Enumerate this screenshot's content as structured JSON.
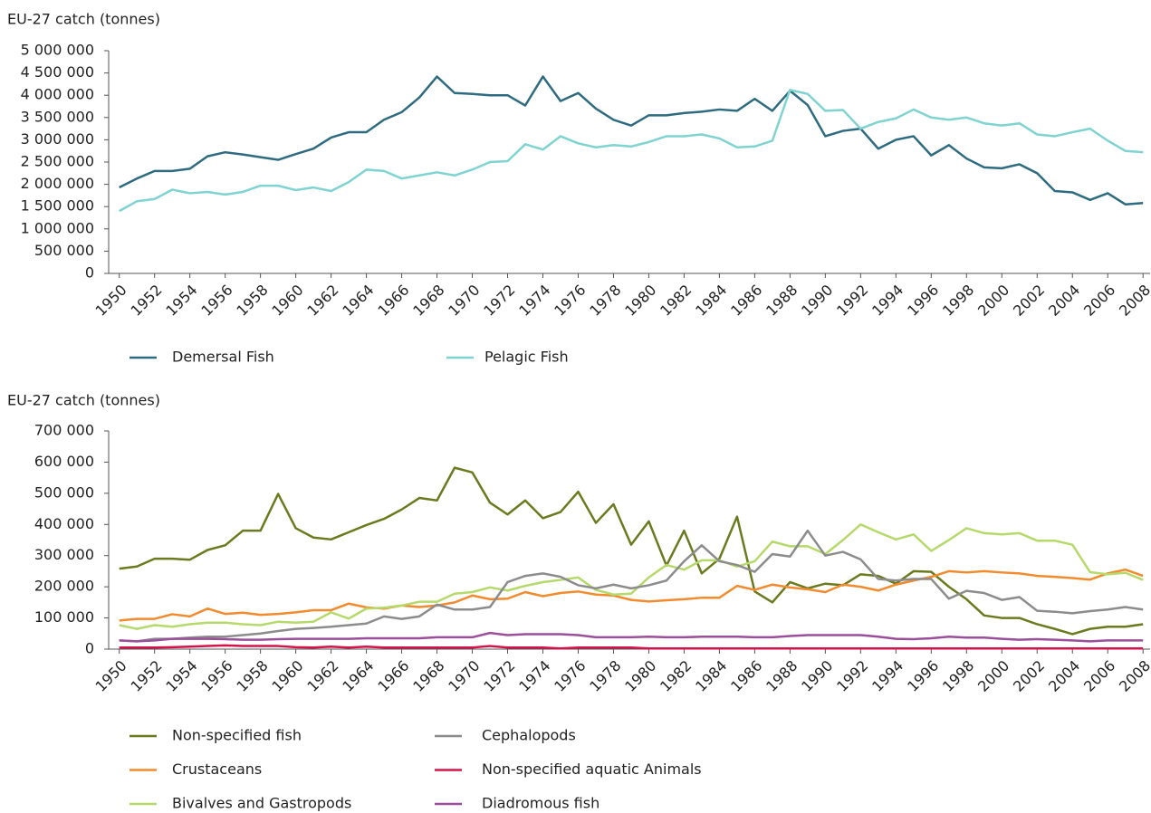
{
  "chart_data": [
    {
      "type": "line",
      "title": "EU-27 catch (tonnes)",
      "x": [
        1950,
        1951,
        1952,
        1953,
        1954,
        1955,
        1956,
        1957,
        1958,
        1959,
        1960,
        1961,
        1962,
        1963,
        1964,
        1965,
        1966,
        1967,
        1968,
        1969,
        1970,
        1971,
        1972,
        1973,
        1974,
        1975,
        1976,
        1977,
        1978,
        1979,
        1980,
        1981,
        1982,
        1983,
        1984,
        1985,
        1986,
        1987,
        1988,
        1989,
        1990,
        1991,
        1992,
        1993,
        1994,
        1995,
        1996,
        1997,
        1998,
        1999,
        2000,
        2001,
        2002,
        2003,
        2004,
        2005,
        2006,
        2007,
        2008
      ],
      "xlim": [
        1949.4,
        2008.4
      ],
      "xticks": [
        1950,
        1952,
        1954,
        1956,
        1958,
        1960,
        1962,
        1964,
        1966,
        1968,
        1970,
        1972,
        1974,
        1976,
        1978,
        1980,
        1982,
        1984,
        1986,
        1988,
        1990,
        1992,
        1994,
        1996,
        1998,
        2000,
        2002,
        2004,
        2006,
        2008
      ],
      "ylim": [
        0,
        5000000
      ],
      "yticks": [
        0,
        {
          "value": 500000,
          "label": "500 000"
        },
        {
          "value": 1000000,
          "label": "1 000 000"
        },
        {
          "value": 1500000,
          "label": "1 500 000"
        },
        {
          "value": 2000000,
          "label": "2 000 000"
        },
        {
          "value": 2500000,
          "label": "2 500 000"
        },
        {
          "value": 3000000,
          "label": "3 000 000"
        },
        {
          "value": 3500000,
          "label": "3 500 000"
        },
        {
          "value": 4000000,
          "label": "4 000 000"
        },
        {
          "value": 4500000,
          "label": "4 500 000"
        },
        {
          "value": 5000000,
          "label": "5 000 000"
        }
      ],
      "grid": false,
      "series": [
        {
          "name": "Demersal Fish",
          "color": "#2e6b80",
          "values": [
            1930000,
            2130000,
            2300000,
            2300000,
            2350000,
            2630000,
            2720000,
            2670000,
            2610000,
            2550000,
            2680000,
            2800000,
            3050000,
            3170000,
            3170000,
            3450000,
            3620000,
            3950000,
            4420000,
            4050000,
            4030000,
            4000000,
            4000000,
            3770000,
            4420000,
            3870000,
            4050000,
            3700000,
            3450000,
            3320000,
            3550000,
            3550000,
            3600000,
            3630000,
            3680000,
            3650000,
            3920000,
            3650000,
            4100000,
            3780000,
            3080000,
            3200000,
            3250000,
            2800000,
            3000000,
            3080000,
            2650000,
            2880000,
            2580000,
            2380000,
            2360000,
            2450000,
            2250000,
            1850000,
            1820000,
            1650000,
            1800000,
            1550000,
            1580000
          ]
        },
        {
          "name": "Pelagic Fish",
          "color": "#7fd3d0",
          "values": [
            1400000,
            1620000,
            1670000,
            1880000,
            1800000,
            1830000,
            1770000,
            1830000,
            1970000,
            1970000,
            1870000,
            1930000,
            1850000,
            2050000,
            2330000,
            2300000,
            2130000,
            2200000,
            2270000,
            2200000,
            2330000,
            2500000,
            2520000,
            2900000,
            2780000,
            3080000,
            2920000,
            2830000,
            2880000,
            2850000,
            2950000,
            3080000,
            3080000,
            3120000,
            3030000,
            2830000,
            2850000,
            2980000,
            4120000,
            4030000,
            3650000,
            3670000,
            3250000,
            3400000,
            3480000,
            3680000,
            3500000,
            3450000,
            3500000,
            3370000,
            3320000,
            3370000,
            3120000,
            3080000,
            3170000,
            3250000,
            2980000,
            2750000,
            2720000
          ]
        }
      ]
    },
    {
      "type": "line",
      "title": "EU-27 catch (tonnes)",
      "x": [
        1950,
        1951,
        1952,
        1953,
        1954,
        1955,
        1956,
        1957,
        1958,
        1959,
        1960,
        1961,
        1962,
        1963,
        1964,
        1965,
        1966,
        1967,
        1968,
        1969,
        1970,
        1971,
        1972,
        1973,
        1974,
        1975,
        1976,
        1977,
        1978,
        1979,
        1980,
        1981,
        1982,
        1983,
        1984,
        1985,
        1986,
        1987,
        1988,
        1989,
        1990,
        1991,
        1992,
        1993,
        1994,
        1995,
        1996,
        1997,
        1998,
        1999,
        2000,
        2001,
        2002,
        2003,
        2004,
        2005,
        2006,
        2007,
        2008
      ],
      "xlim": [
        1949.4,
        2008.4
      ],
      "xticks": [
        1950,
        1952,
        1954,
        1956,
        1958,
        1960,
        1962,
        1964,
        1966,
        1968,
        1970,
        1972,
        1974,
        1976,
        1978,
        1980,
        1982,
        1984,
        1986,
        1988,
        1990,
        1992,
        1994,
        1996,
        1998,
        2000,
        2002,
        2004,
        2006,
        2008
      ],
      "ylim": [
        0,
        700000
      ],
      "yticks": [
        0,
        {
          "value": 100000,
          "label": "100 000"
        },
        {
          "value": 200000,
          "label": "200 000"
        },
        {
          "value": 300000,
          "label": "300 000"
        },
        {
          "value": 400000,
          "label": "400 000"
        },
        {
          "value": 500000,
          "label": "500 000"
        },
        {
          "value": 600000,
          "label": "600 000"
        },
        {
          "value": 700000,
          "label": "700 000"
        }
      ],
      "grid": false,
      "series": [
        {
          "name": "Non-specified fish",
          "color": "#6b7a1f",
          "values": [
            258000,
            265000,
            290000,
            290000,
            287000,
            318000,
            333000,
            380000,
            380000,
            498000,
            388000,
            358000,
            352000,
            375000,
            398000,
            418000,
            448000,
            485000,
            477000,
            582000,
            567000,
            470000,
            432000,
            477000,
            420000,
            440000,
            505000,
            405000,
            465000,
            335000,
            410000,
            268000,
            380000,
            243000,
            290000,
            425000,
            185000,
            150000,
            215000,
            195000,
            210000,
            205000,
            240000,
            235000,
            210000,
            250000,
            248000,
            200000,
            160000,
            108000,
            100000,
            100000,
            80000,
            65000,
            48000,
            65000,
            72000,
            72000,
            80000
          ]
        },
        {
          "name": "Crustaceans",
          "color": "#f28a2e",
          "values": [
            92000,
            97000,
            97000,
            112000,
            105000,
            130000,
            113000,
            117000,
            110000,
            113000,
            118000,
            125000,
            125000,
            146000,
            134000,
            130000,
            140000,
            135000,
            140000,
            150000,
            172000,
            160000,
            162000,
            183000,
            170000,
            180000,
            185000,
            175000,
            172000,
            158000,
            153000,
            157000,
            160000,
            165000,
            165000,
            203000,
            190000,
            207000,
            198000,
            192000,
            183000,
            207000,
            200000,
            188000,
            207000,
            220000,
            232000,
            250000,
            246000,
            250000,
            246000,
            243000,
            235000,
            232000,
            228000,
            223000,
            243000,
            255000,
            235000
          ]
        },
        {
          "name": "Bivalves and Gastropods",
          "color": "#b5d96a",
          "values": [
            77000,
            65000,
            77000,
            72000,
            80000,
            85000,
            85000,
            80000,
            77000,
            88000,
            85000,
            88000,
            118000,
            98000,
            130000,
            133000,
            140000,
            152000,
            152000,
            178000,
            183000,
            198000,
            188000,
            203000,
            215000,
            222000,
            230000,
            190000,
            175000,
            178000,
            230000,
            270000,
            255000,
            285000,
            285000,
            265000,
            282000,
            345000,
            330000,
            330000,
            305000,
            350000,
            400000,
            375000,
            352000,
            368000,
            315000,
            350000,
            388000,
            372000,
            368000,
            372000,
            348000,
            348000,
            335000,
            247000,
            240000,
            245000,
            222000
          ]
        },
        {
          "name": "Cephalopods",
          "color": "#8c8c8c",
          "values": [
            28000,
            25000,
            33000,
            33000,
            37000,
            40000,
            40000,
            45000,
            50000,
            58000,
            65000,
            68000,
            72000,
            77000,
            82000,
            105000,
            97000,
            105000,
            143000,
            127000,
            127000,
            135000,
            215000,
            235000,
            243000,
            232000,
            205000,
            195000,
            207000,
            195000,
            205000,
            220000,
            282000,
            333000,
            282000,
            270000,
            248000,
            305000,
            297000,
            380000,
            300000,
            312000,
            288000,
            225000,
            220000,
            225000,
            225000,
            162000,
            187000,
            180000,
            158000,
            167000,
            123000,
            120000,
            115000,
            122000,
            127000,
            135000,
            127000
          ]
        },
        {
          "name": "Non-specified aquatic Animals",
          "color": "#d6124a",
          "values": [
            5000,
            5000,
            5000,
            6000,
            8000,
            10000,
            12000,
            10000,
            10000,
            10000,
            6000,
            5000,
            8000,
            5000,
            8000,
            5000,
            5000,
            5000,
            5000,
            5000,
            5000,
            10000,
            5000,
            5000,
            5000,
            2000,
            5000,
            5000,
            5000,
            5000,
            2000,
            2000,
            2000,
            2000,
            2000,
            2000,
            2000,
            2000,
            2000,
            2000,
            2000,
            2000,
            2000,
            2000,
            2000,
            2000,
            2000,
            2000,
            2000,
            2000,
            2000,
            2000,
            2000,
            2000,
            2000,
            2000,
            2000,
            2000,
            2000
          ]
        },
        {
          "name": "Diadromous fish",
          "color": "#9b4f9b",
          "values": [
            28000,
            25000,
            28000,
            33000,
            33000,
            33000,
            32000,
            30000,
            30000,
            32000,
            33000,
            33000,
            33000,
            33000,
            35000,
            35000,
            35000,
            35000,
            38000,
            38000,
            38000,
            52000,
            45000,
            48000,
            48000,
            48000,
            45000,
            38000,
            38000,
            38000,
            40000,
            38000,
            38000,
            40000,
            40000,
            40000,
            38000,
            38000,
            42000,
            45000,
            45000,
            45000,
            45000,
            40000,
            33000,
            32000,
            35000,
            40000,
            37000,
            37000,
            33000,
            30000,
            32000,
            30000,
            28000,
            25000,
            28000,
            28000,
            28000
          ]
        }
      ]
    }
  ]
}
